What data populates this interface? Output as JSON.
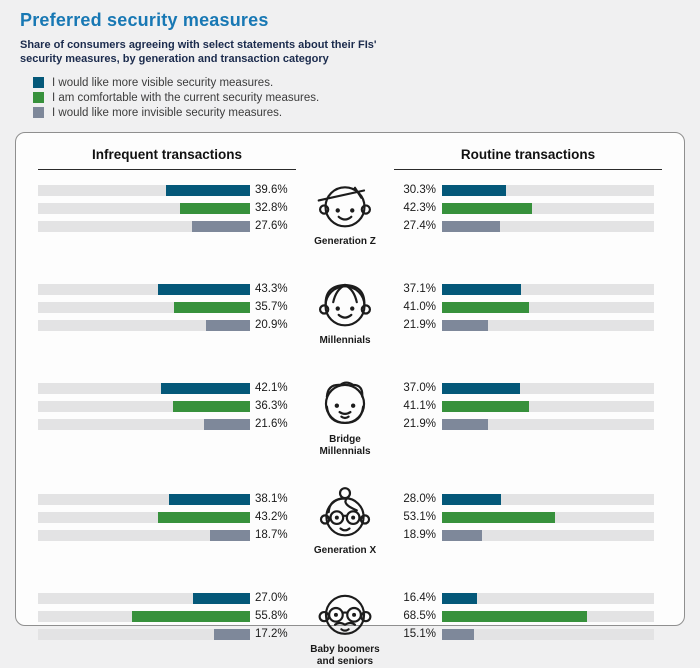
{
  "page": {
    "title": "Preferred security measures",
    "subtitle": "Share of consumers agreeing with select statements about their FIs' security measures, by generation and transaction category"
  },
  "legend": [
    {
      "label": "I would like more visible security measures.",
      "color": "#045879"
    },
    {
      "label": "I am comfortable with the current security measures.",
      "color": "#37913c"
    },
    {
      "label": "I would like more invisible security measures.",
      "color": "#7e889a"
    }
  ],
  "colors": {
    "title_blue": "#1878b4",
    "subtitle_navy": "#1b2b4d",
    "bar_blue": "#045879",
    "bar_green": "#37913c",
    "bar_gray": "#7e889a",
    "bar_track": "#e3e3e4",
    "panel_border": "#8f8f8f",
    "page_background": "#f0f0f1"
  },
  "chart_data": {
    "type": "bar",
    "title": "Preferred security measures",
    "subtitle": "Share of consumers agreeing with select statements about their FIs' security measures, by generation and transaction category",
    "columns": [
      "Infrequent transactions",
      "Routine transactions"
    ],
    "series_labels": [
      "I would like more visible security measures.",
      "I am comfortable with the current security measures.",
      "I would like more invisible security measures."
    ],
    "axis_max": 100,
    "unit": "%",
    "groups": [
      {
        "name": "Generation Z",
        "icon": "generation-z-face-icon",
        "infrequent": {
          "values": [
            39.6,
            32.8,
            27.6
          ],
          "labels": [
            "39.6%",
            "32.8%",
            "27.6%"
          ]
        },
        "routine": {
          "values": [
            30.3,
            42.3,
            27.4
          ],
          "labels": [
            "30.3%",
            "42.3%",
            "27.4%"
          ]
        }
      },
      {
        "name": "Millennials",
        "icon": "millennials-face-icon",
        "infrequent": {
          "values": [
            43.3,
            35.7,
            20.9
          ],
          "labels": [
            "43.3%",
            "35.7%",
            "20.9%"
          ]
        },
        "routine": {
          "values": [
            37.1,
            41.0,
            21.9
          ],
          "labels": [
            "37.1%",
            "41.0%",
            "21.9%"
          ]
        }
      },
      {
        "name": "Bridge Millennials",
        "icon": "bridge-millennials-face-icon",
        "infrequent": {
          "values": [
            42.1,
            36.3,
            21.6
          ],
          "labels": [
            "42.1%",
            "36.3%",
            "21.6%"
          ]
        },
        "routine": {
          "values": [
            37.0,
            41.1,
            21.9
          ],
          "labels": [
            "37.0%",
            "41.1%",
            "21.9%"
          ]
        }
      },
      {
        "name": "Generation X",
        "icon": "generation-x-face-icon",
        "infrequent": {
          "values": [
            38.1,
            43.2,
            18.7
          ],
          "labels": [
            "38.1%",
            "43.2%",
            "18.7%"
          ]
        },
        "routine": {
          "values": [
            28.0,
            53.1,
            18.9
          ],
          "labels": [
            "28.0%",
            "53.1%",
            "18.9%"
          ]
        }
      },
      {
        "name": "Baby boomers and seniors",
        "icon": "baby-boomers-face-icon",
        "infrequent": {
          "values": [
            27.0,
            55.8,
            17.2
          ],
          "labels": [
            "27.0%",
            "55.8%",
            "17.2%"
          ]
        },
        "routine": {
          "values": [
            16.4,
            68.5,
            15.1
          ],
          "labels": [
            "16.4%",
            "68.5%",
            "15.1%"
          ]
        }
      }
    ]
  }
}
